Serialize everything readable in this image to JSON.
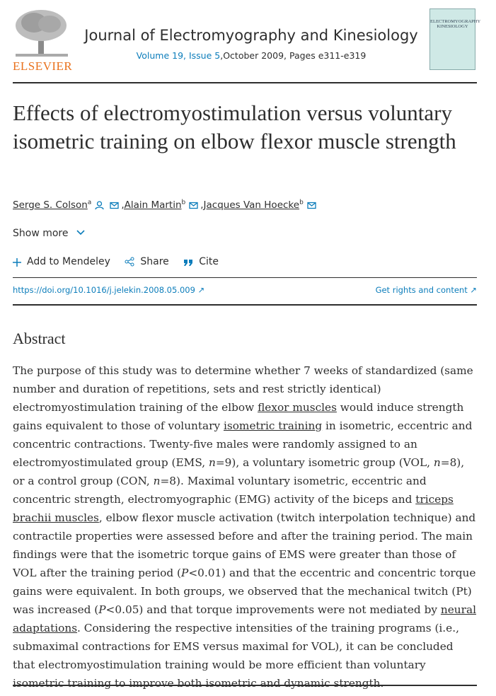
{
  "header": {
    "publisher": "ELSEVIER",
    "journal": "Journal of Electromyography and Kinesiology",
    "volume_issue": "Volume 19, Issue 5",
    "date_pages": ",October 2009, Pages e311-e319",
    "cover": [
      "ELECTROMYOGRAPHY",
      "KINESIOLOGY"
    ]
  },
  "article": {
    "title": "Effects of electromyostimulation versus voluntary isometric training on elbow flexor muscle strength",
    "authors": [
      {
        "name": "Serge S. Colson",
        "affiliation": "a"
      },
      {
        "name": ",Alain Martin",
        "affiliation": "b"
      },
      {
        "name": ",Jacques Van Hoecke",
        "affiliation": "b"
      }
    ],
    "show_more": "Show more",
    "actions": [
      "Add to Mendeley",
      "Share",
      "Cite"
    ],
    "doi": "https://doi.org/10.1016/j.jelekin.2008.05.009",
    "rights": "Get rights and content"
  },
  "abstract": {
    "heading": "Abstract",
    "runs": [
      {
        "text": "The purpose of this study was to determine whether 7 weeks of standardized (same number and duration of repetitions, sets and rest strictly identical) electromyostimulation training of the elbow "
      },
      {
        "text": "flexor muscles",
        "style": "link"
      },
      {
        "text": " would induce strength gains equivalent to those of voluntary "
      },
      {
        "text": "isometric training",
        "style": "link"
      },
      {
        "text": " in isometric, eccentric and concentric contractions. Twenty-five males were randomly assigned to an electromyostimulated group (EMS, "
      },
      {
        "text": "n",
        "style": "italic"
      },
      {
        "text": "=9), a voluntary isometric group (VOL, "
      },
      {
        "text": "n",
        "style": "italic"
      },
      {
        "text": "=8), or a control group (CON, "
      },
      {
        "text": "n",
        "style": "italic"
      },
      {
        "text": "=8). Maximal voluntary isometric, eccentric and concentric strength, electromyographic (EMG) activity of the biceps and "
      },
      {
        "text": "triceps brachii muscles",
        "style": "link"
      },
      {
        "text": ", elbow flexor muscle activation (twitch interpolation technique) and contractile properties were assessed before and after the training period. The main findings were that the isometric torque gains of EMS were greater than those of VOL after the training period ("
      },
      {
        "text": "P",
        "style": "italic"
      },
      {
        "text": "<0.01) and that the eccentric and concentric torque gains were equivalent. In both groups, we observed that the mechanical twitch (Pt) was increased ("
      },
      {
        "text": "P",
        "style": "italic"
      },
      {
        "text": "<0.05) and that torque improvements were not mediated by "
      },
      {
        "text": "neural adaptations",
        "style": "link"
      },
      {
        "text": ". Considering the respective intensities of the training programs (i.e., submaximal contractions for EMS versus maximal for VOL), it can be concluded that electromyostimulation training would be more efficient than voluntary isometric training to improve both isometric and dynamic strength."
      }
    ]
  }
}
